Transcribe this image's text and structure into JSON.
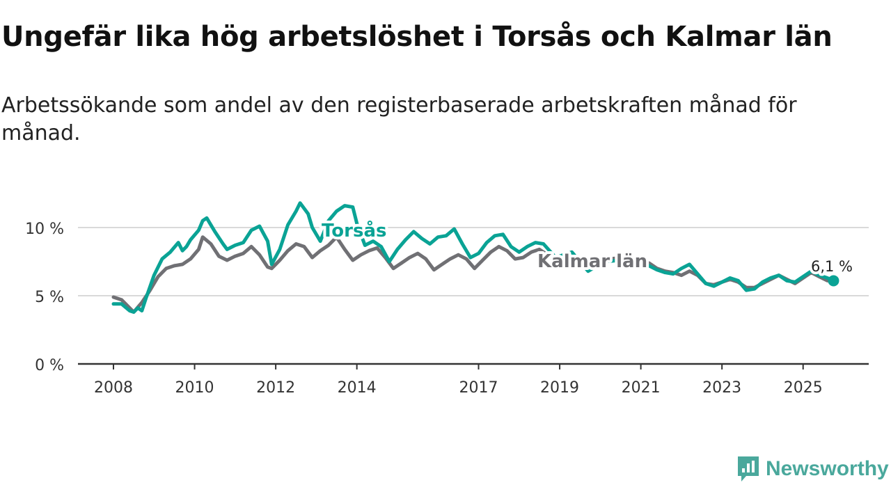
{
  "title": "Ungefär lika hög arbetslöshet i Torsås och Kalmar län",
  "subtitle": "Arbetssökande som andel av den registerbaserade arbetskraften månad för månad.",
  "brand": {
    "name": "Newsworthy"
  },
  "colors": {
    "torsas": "#0aa395",
    "kalmar": "#707074",
    "grid": "#d9d9d9",
    "axis": "#333333",
    "brand": "#4aa89c"
  },
  "chart_data": {
    "type": "line",
    "y_unit": "%",
    "ylim": [
      0,
      12
    ],
    "yticks": [
      0,
      5,
      10
    ],
    "ytick_labels": [
      "0 %",
      "5 %",
      "10 %"
    ],
    "xlim": [
      2008.0,
      2026.0
    ],
    "xticks": [
      2008,
      2010,
      2012,
      2014,
      2017,
      2019,
      2021,
      2023,
      2025
    ],
    "xtick_labels": [
      "2008",
      "2010",
      "2012",
      "2014",
      "2017",
      "2019",
      "2021",
      "2023",
      "2025"
    ],
    "end_label": "6,1 %",
    "series": [
      {
        "name": "Kalmar län",
        "points": [
          [
            2008.0,
            4.9
          ],
          [
            2008.2,
            4.7
          ],
          [
            2008.4,
            4.1
          ],
          [
            2008.5,
            3.8
          ],
          [
            2008.7,
            4.5
          ],
          [
            2008.9,
            5.4
          ],
          [
            2009.1,
            6.4
          ],
          [
            2009.3,
            7.0
          ],
          [
            2009.5,
            7.2
          ],
          [
            2009.7,
            7.3
          ],
          [
            2009.9,
            7.7
          ],
          [
            2010.1,
            8.4
          ],
          [
            2010.2,
            9.3
          ],
          [
            2010.4,
            8.8
          ],
          [
            2010.6,
            7.9
          ],
          [
            2010.8,
            7.6
          ],
          [
            2011.0,
            7.9
          ],
          [
            2011.2,
            8.1
          ],
          [
            2011.4,
            8.6
          ],
          [
            2011.6,
            8.0
          ],
          [
            2011.8,
            7.1
          ],
          [
            2011.9,
            7.0
          ],
          [
            2012.1,
            7.6
          ],
          [
            2012.3,
            8.3
          ],
          [
            2012.5,
            8.8
          ],
          [
            2012.7,
            8.6
          ],
          [
            2012.9,
            7.8
          ],
          [
            2013.1,
            8.3
          ],
          [
            2013.3,
            8.7
          ],
          [
            2013.5,
            9.3
          ],
          [
            2013.7,
            8.4
          ],
          [
            2013.9,
            7.6
          ],
          [
            2014.1,
            8.0
          ],
          [
            2014.3,
            8.3
          ],
          [
            2014.5,
            8.5
          ],
          [
            2014.7,
            7.8
          ],
          [
            2014.9,
            7.0
          ],
          [
            2015.1,
            7.4
          ],
          [
            2015.3,
            7.8
          ],
          [
            2015.5,
            8.1
          ],
          [
            2015.7,
            7.7
          ],
          [
            2015.9,
            6.9
          ],
          [
            2016.1,
            7.3
          ],
          [
            2016.3,
            7.7
          ],
          [
            2016.5,
            8.0
          ],
          [
            2016.7,
            7.7
          ],
          [
            2016.9,
            7.0
          ],
          [
            2017.1,
            7.6
          ],
          [
            2017.3,
            8.2
          ],
          [
            2017.5,
            8.6
          ],
          [
            2017.7,
            8.3
          ],
          [
            2017.9,
            7.7
          ],
          [
            2018.1,
            7.8
          ],
          [
            2018.3,
            8.2
          ],
          [
            2018.5,
            8.4
          ],
          [
            2018.7,
            8.0
          ],
          [
            2018.9,
            7.5
          ],
          [
            2019.3,
            7.8
          ],
          [
            2019.8,
            7.6
          ],
          [
            2020.2,
            7.7
          ],
          [
            2020.6,
            7.8
          ],
          [
            2020.9,
            7.6
          ],
          [
            2021.2,
            7.4
          ],
          [
            2021.4,
            7.0
          ],
          [
            2021.6,
            6.8
          ],
          [
            2021.8,
            6.7
          ],
          [
            2022.0,
            6.5
          ],
          [
            2022.2,
            6.8
          ],
          [
            2022.4,
            6.5
          ],
          [
            2022.6,
            5.9
          ],
          [
            2022.8,
            5.8
          ],
          [
            2023.0,
            6.0
          ],
          [
            2023.2,
            6.2
          ],
          [
            2023.4,
            6.0
          ],
          [
            2023.6,
            5.6
          ],
          [
            2023.8,
            5.6
          ],
          [
            2024.0,
            5.9
          ],
          [
            2024.2,
            6.2
          ],
          [
            2024.4,
            6.5
          ],
          [
            2024.6,
            6.2
          ],
          [
            2024.8,
            5.9
          ],
          [
            2025.0,
            6.3
          ],
          [
            2025.2,
            6.7
          ],
          [
            2025.4,
            6.4
          ],
          [
            2025.6,
            6.1
          ],
          [
            2025.75,
            6.1
          ]
        ]
      },
      {
        "name": "Torsås",
        "points": [
          [
            2008.0,
            4.4
          ],
          [
            2008.2,
            4.4
          ],
          [
            2008.4,
            3.9
          ],
          [
            2008.5,
            3.8
          ],
          [
            2008.6,
            4.1
          ],
          [
            2008.7,
            3.9
          ],
          [
            2008.8,
            4.8
          ],
          [
            2009.0,
            6.5
          ],
          [
            2009.2,
            7.7
          ],
          [
            2009.4,
            8.2
          ],
          [
            2009.6,
            8.9
          ],
          [
            2009.7,
            8.3
          ],
          [
            2009.8,
            8.6
          ],
          [
            2009.9,
            9.1
          ],
          [
            2010.1,
            9.8
          ],
          [
            2010.2,
            10.5
          ],
          [
            2010.3,
            10.7
          ],
          [
            2010.5,
            9.7
          ],
          [
            2010.7,
            8.8
          ],
          [
            2010.8,
            8.4
          ],
          [
            2011.0,
            8.7
          ],
          [
            2011.2,
            8.9
          ],
          [
            2011.4,
            9.8
          ],
          [
            2011.6,
            10.1
          ],
          [
            2011.8,
            9.0
          ],
          [
            2011.9,
            7.3
          ],
          [
            2012.1,
            8.4
          ],
          [
            2012.3,
            10.2
          ],
          [
            2012.5,
            11.2
          ],
          [
            2012.6,
            11.8
          ],
          [
            2012.8,
            11.0
          ],
          [
            2012.9,
            10.0
          ],
          [
            2013.1,
            9.0
          ],
          [
            2013.3,
            10.5
          ],
          [
            2013.5,
            11.2
          ],
          [
            2013.7,
            11.6
          ],
          [
            2013.9,
            11.5
          ],
          [
            2014.0,
            10.3
          ],
          [
            2014.2,
            8.7
          ],
          [
            2014.4,
            9.0
          ],
          [
            2014.6,
            8.6
          ],
          [
            2014.8,
            7.5
          ],
          [
            2015.0,
            8.4
          ],
          [
            2015.2,
            9.1
          ],
          [
            2015.4,
            9.7
          ],
          [
            2015.6,
            9.2
          ],
          [
            2015.8,
            8.8
          ],
          [
            2016.0,
            9.3
          ],
          [
            2016.2,
            9.4
          ],
          [
            2016.4,
            9.9
          ],
          [
            2016.6,
            8.8
          ],
          [
            2016.8,
            7.8
          ],
          [
            2017.0,
            8.1
          ],
          [
            2017.2,
            8.9
          ],
          [
            2017.4,
            9.4
          ],
          [
            2017.6,
            9.5
          ],
          [
            2017.8,
            8.6
          ],
          [
            2018.0,
            8.2
          ],
          [
            2018.2,
            8.6
          ],
          [
            2018.4,
            8.9
          ],
          [
            2018.6,
            8.8
          ],
          [
            2018.9,
            7.8
          ],
          [
            2019.3,
            8.2
          ],
          [
            2019.7,
            6.8
          ],
          [
            2020.1,
            7.5
          ],
          [
            2020.5,
            7.6
          ],
          [
            2020.9,
            7.5
          ],
          [
            2021.2,
            7.2
          ],
          [
            2021.4,
            6.9
          ],
          [
            2021.6,
            6.7
          ],
          [
            2021.8,
            6.6
          ],
          [
            2022.0,
            7.0
          ],
          [
            2022.2,
            7.3
          ],
          [
            2022.4,
            6.6
          ],
          [
            2022.6,
            5.9
          ],
          [
            2022.8,
            5.7
          ],
          [
            2023.0,
            6.0
          ],
          [
            2023.2,
            6.3
          ],
          [
            2023.4,
            6.1
          ],
          [
            2023.6,
            5.4
          ],
          [
            2023.8,
            5.5
          ],
          [
            2024.0,
            6.0
          ],
          [
            2024.2,
            6.3
          ],
          [
            2024.4,
            6.5
          ],
          [
            2024.6,
            6.1
          ],
          [
            2024.8,
            6.0
          ],
          [
            2025.0,
            6.4
          ],
          [
            2025.2,
            6.8
          ],
          [
            2025.4,
            6.5
          ],
          [
            2025.6,
            6.3
          ],
          [
            2025.75,
            6.1
          ]
        ]
      }
    ]
  }
}
